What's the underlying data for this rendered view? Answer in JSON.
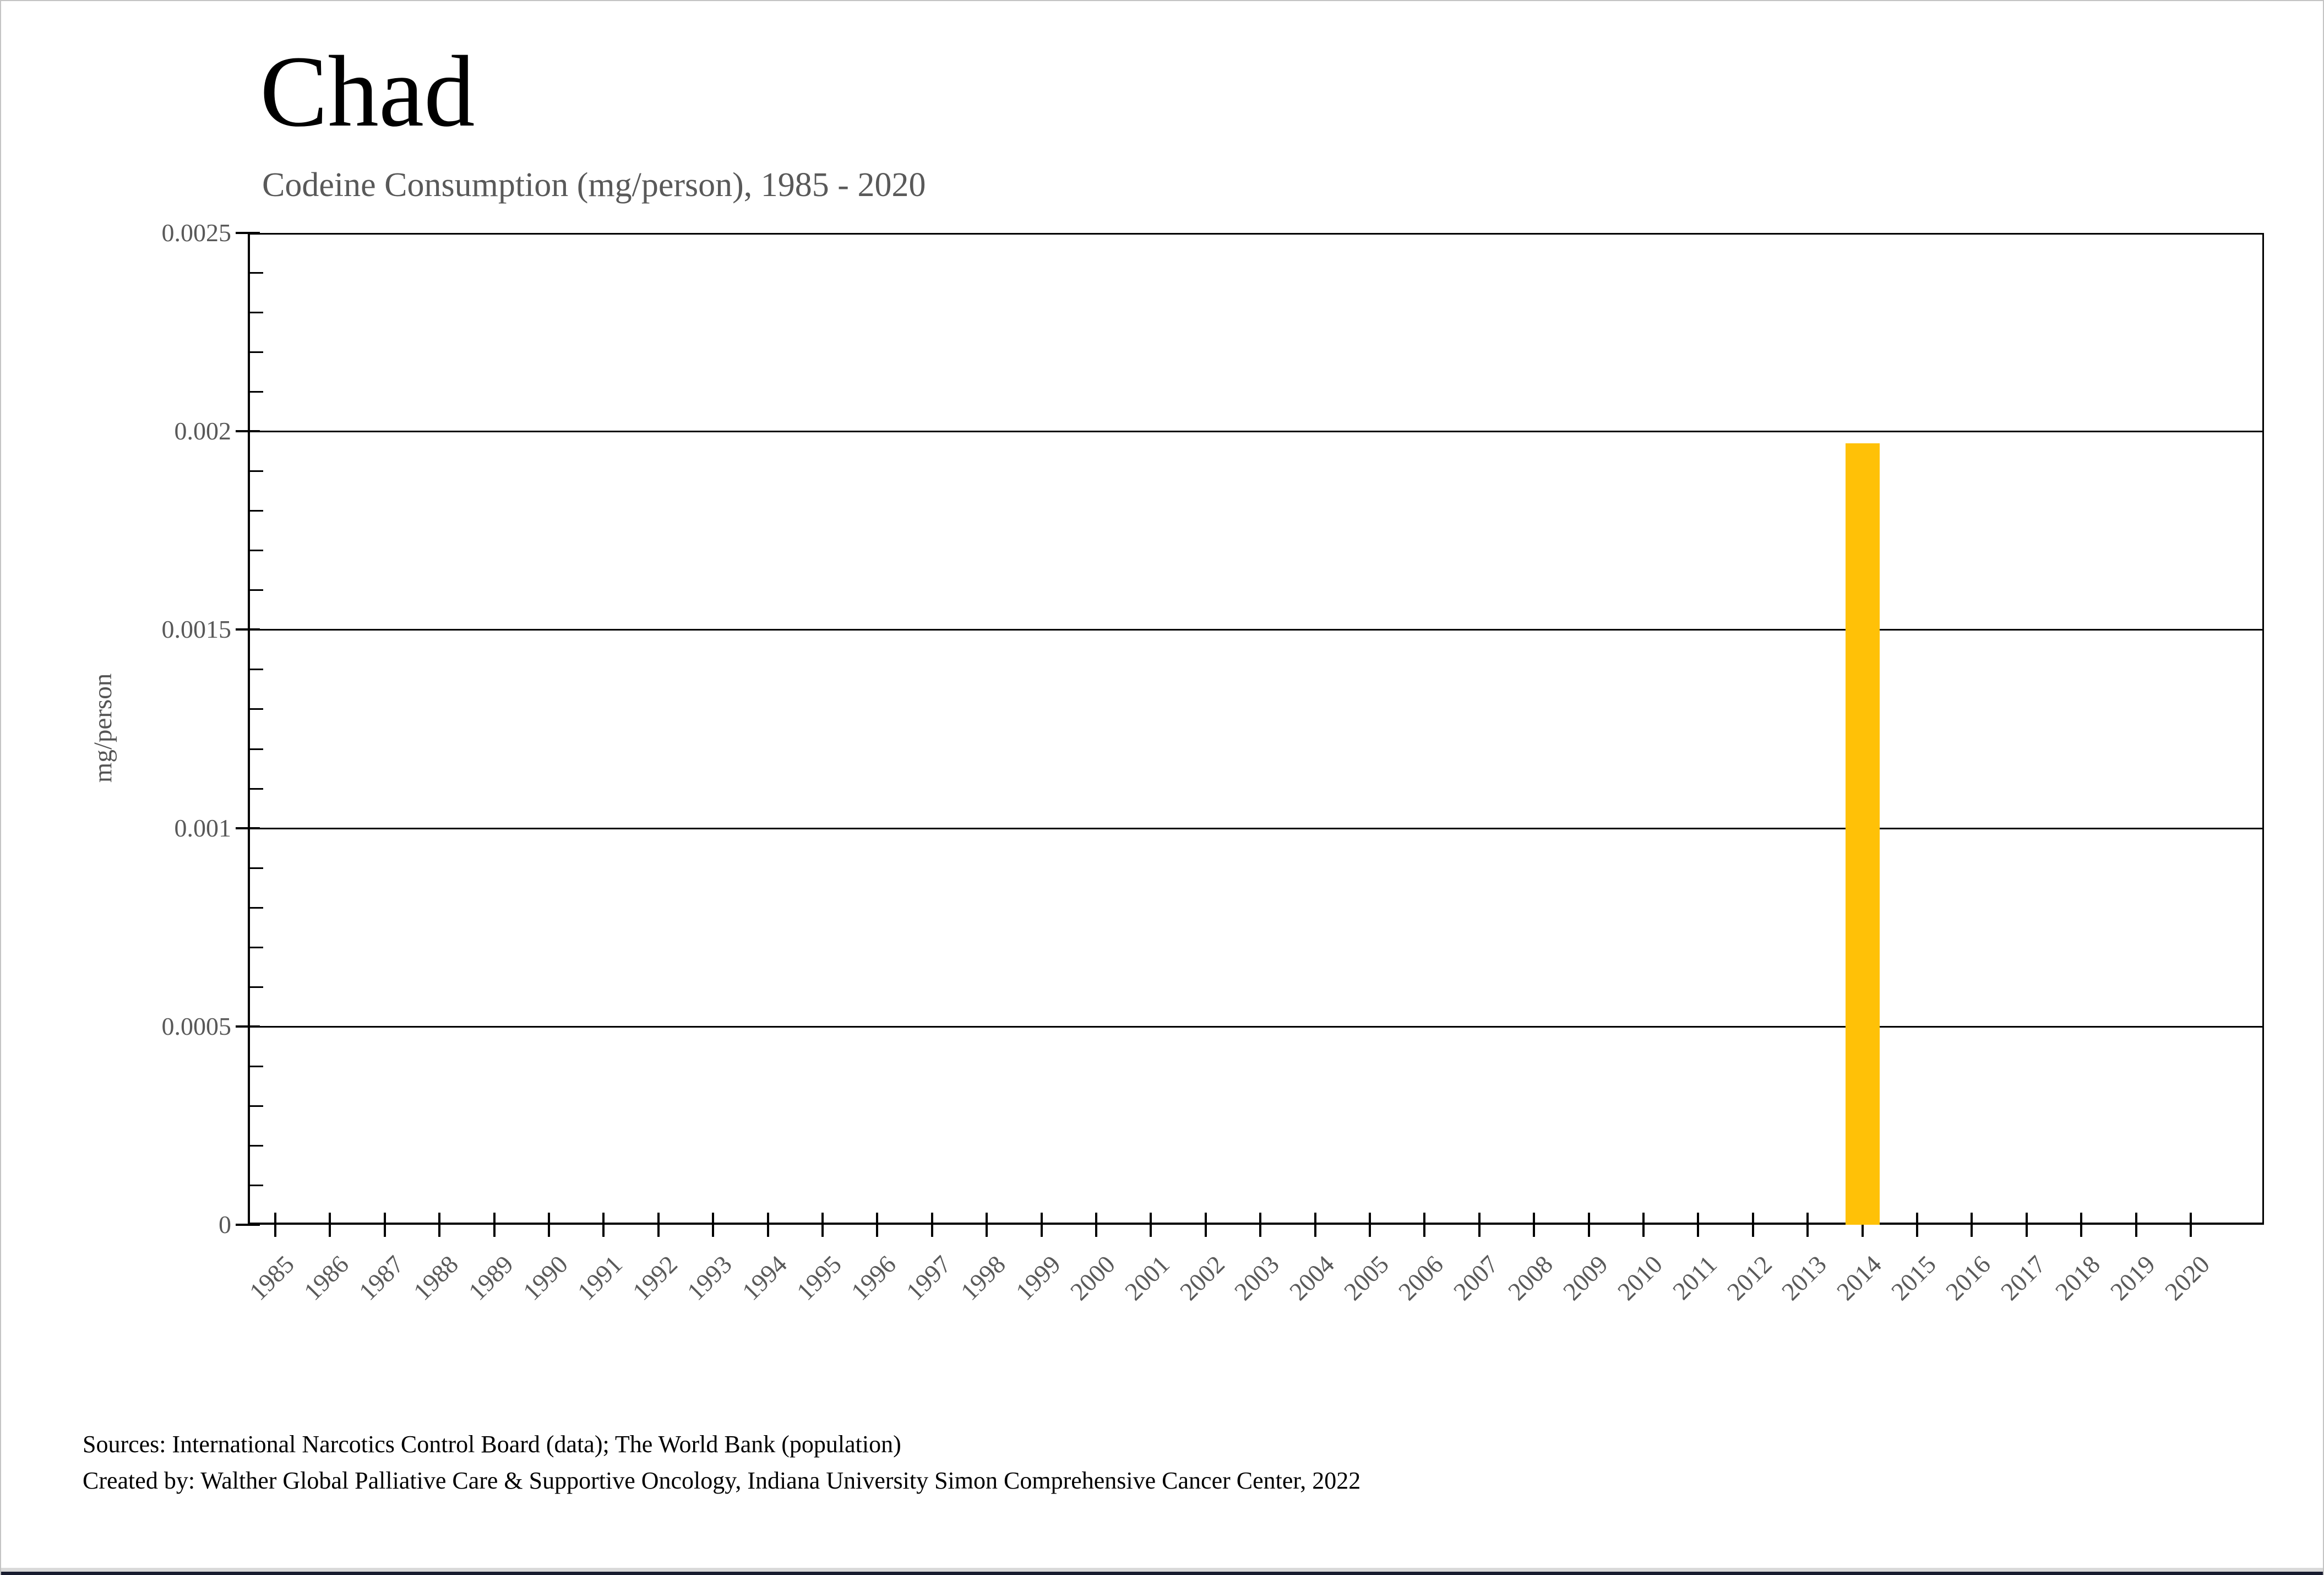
{
  "page": {
    "background": "#ffffff",
    "border_color": "#c4c4c4",
    "bottom_strip_light_color": "#d9d9d9",
    "bottom_strip_dark_color": "#181c2f"
  },
  "chart_data": {
    "type": "bar",
    "title": "Chad",
    "subtitle": "Codeine Consumption (mg/person), 1985 - 2020",
    "xlabel": "",
    "ylabel": "mg/person",
    "ylim": [
      0,
      0.0025
    ],
    "ytick_values": [
      0,
      0.0005,
      0.001,
      0.0015,
      0.002,
      0.0025
    ],
    "ytick_labels": [
      "0",
      "0.0005",
      "0.001",
      "0.0015",
      "0.002",
      "0.0025"
    ],
    "y_minor_step": 0.0001,
    "grid": "horizontal-major",
    "legend_position": "none",
    "bar_color": "#FFC107",
    "axis_color": "#000000",
    "tick_label_color": "#595959",
    "categories": [
      "1985",
      "1986",
      "1987",
      "1988",
      "1989",
      "1990",
      "1991",
      "1992",
      "1993",
      "1994",
      "1995",
      "1996",
      "1997",
      "1998",
      "1999",
      "2000",
      "2001",
      "2002",
      "2003",
      "2004",
      "2005",
      "2006",
      "2007",
      "2008",
      "2009",
      "2010",
      "2011",
      "2012",
      "2013",
      "2014",
      "2015",
      "2016",
      "2017",
      "2018",
      "2019",
      "2020"
    ],
    "values": [
      0,
      0,
      0,
      0,
      0,
      0,
      0,
      0,
      0,
      0,
      0,
      0,
      0,
      0,
      0,
      0,
      0,
      0,
      0,
      0,
      0,
      0,
      0,
      0,
      0,
      0,
      0,
      0,
      0,
      0.00197,
      0,
      0,
      0,
      0,
      0,
      0
    ]
  },
  "footer": {
    "line1": "Sources: International Narcotics Control Board (data); The World Bank (population)",
    "line2": "Created by: Walther Global Palliative Care & Supportive Oncology, Indiana University Simon Comprehensive Cancer Center, 2022"
  }
}
